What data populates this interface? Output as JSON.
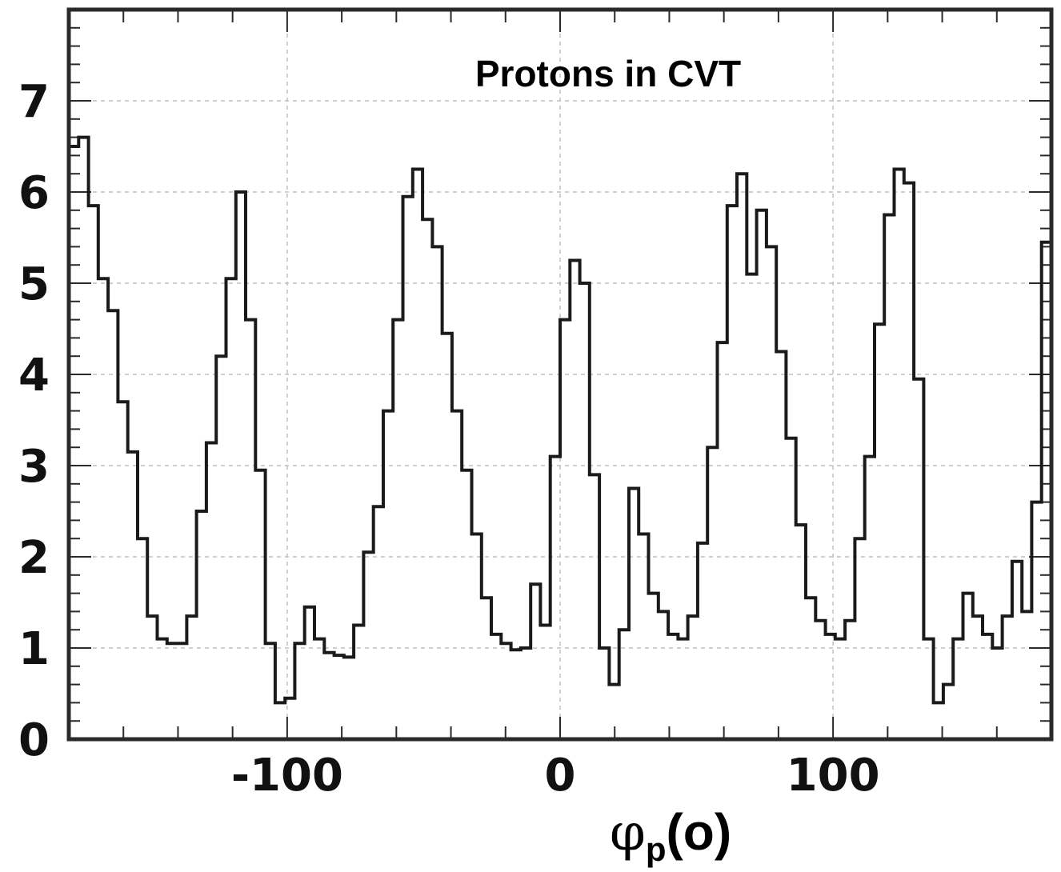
{
  "chart_data": {
    "type": "histogram",
    "title": "Protons in CVT",
    "xlabel": {
      "main": "φ",
      "sub": "p",
      "tail": "(o)"
    },
    "ylabel": "",
    "xlim": [
      -180,
      180
    ],
    "ylim": [
      0,
      8
    ],
    "bin_width": 3.6,
    "x_ticks": [
      {
        "value": -100,
        "label": "-100"
      },
      {
        "value": 0,
        "label": "0"
      },
      {
        "value": 100,
        "label": "100"
      }
    ],
    "y_ticks": [
      {
        "value": 0,
        "label": "0"
      },
      {
        "value": 1,
        "label": "1"
      },
      {
        "value": 2,
        "label": "2"
      },
      {
        "value": 3,
        "label": "3"
      },
      {
        "value": 4,
        "label": "4"
      },
      {
        "value": 5,
        "label": "5"
      },
      {
        "value": 6,
        "label": "6"
      },
      {
        "value": 7,
        "label": "7"
      }
    ],
    "grid": true,
    "values": [
      6.5,
      6.6,
      5.85,
      5.05,
      4.7,
      3.7,
      3.15,
      2.2,
      1.35,
      1.1,
      1.05,
      1.05,
      1.35,
      2.5,
      3.25,
      4.2,
      5.05,
      6.0,
      4.6,
      2.95,
      1.05,
      0.4,
      0.45,
      1.05,
      1.45,
      1.1,
      0.95,
      0.92,
      0.9,
      1.25,
      2.05,
      2.55,
      3.6,
      4.6,
      5.95,
      6.25,
      5.7,
      5.4,
      4.45,
      3.6,
      2.95,
      2.25,
      1.55,
      1.15,
      1.05,
      0.98,
      1.0,
      1.7,
      1.25,
      3.1,
      4.6,
      5.25,
      5.0,
      2.9,
      1.0,
      0.6,
      1.2,
      2.75,
      2.25,
      1.6,
      1.4,
      1.15,
      1.1,
      1.35,
      2.15,
      3.2,
      4.35,
      5.85,
      6.2,
      5.1,
      5.8,
      5.4,
      4.25,
      3.3,
      2.35,
      1.55,
      1.3,
      1.15,
      1.1,
      1.3,
      2.2,
      3.1,
      4.55,
      5.75,
      6.25,
      6.1,
      3.95,
      1.1,
      0.4,
      0.6,
      1.1,
      1.6,
      1.35,
      1.15,
      1.0,
      1.35,
      1.95,
      1.4,
      2.6,
      5.45
    ]
  }
}
